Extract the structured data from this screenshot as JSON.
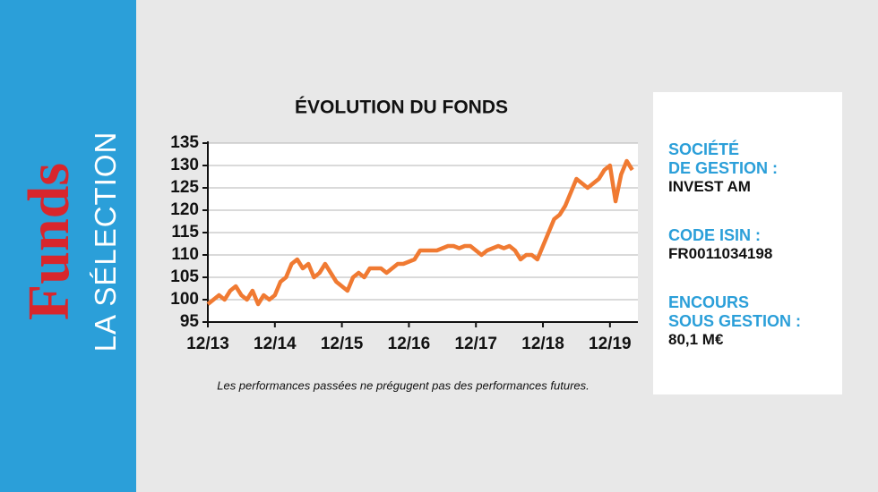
{
  "sidebar": {
    "title": "Funds",
    "subtitle": "LA SÉLECTION"
  },
  "chart_data": {
    "type": "line",
    "title": "ÉVOLUTION DU FONDS",
    "footnote": "Les performances passées ne prégugent pas des performances futures.",
    "x": [
      "2013-12",
      "2014-01",
      "2014-02",
      "2014-03",
      "2014-04",
      "2014-05",
      "2014-06",
      "2014-07",
      "2014-08",
      "2014-09",
      "2014-10",
      "2014-11",
      "2014-12",
      "2015-01",
      "2015-02",
      "2015-03",
      "2015-04",
      "2015-05",
      "2015-06",
      "2015-07",
      "2015-08",
      "2015-09",
      "2015-10",
      "2015-11",
      "2015-12",
      "2016-01",
      "2016-02",
      "2016-03",
      "2016-04",
      "2016-05",
      "2016-06",
      "2016-07",
      "2016-08",
      "2016-09",
      "2016-10",
      "2016-11",
      "2016-12",
      "2017-01",
      "2017-02",
      "2017-03",
      "2017-04",
      "2017-05",
      "2017-06",
      "2017-07",
      "2017-08",
      "2017-09",
      "2017-10",
      "2017-11",
      "2017-12",
      "2018-01",
      "2018-02",
      "2018-03",
      "2018-04",
      "2018-05",
      "2018-06",
      "2018-07",
      "2018-08",
      "2018-09",
      "2018-10",
      "2018-11",
      "2018-12",
      "2019-01",
      "2019-02",
      "2019-03",
      "2019-04",
      "2019-05",
      "2019-06",
      "2019-07",
      "2019-08",
      "2019-09",
      "2019-10",
      "2019-11",
      "2019-12",
      "2020-01",
      "2020-02",
      "2020-03",
      "2020-04"
    ],
    "series": [
      {
        "name": "Fonds",
        "color": "#f07a32",
        "values": [
          99,
          100,
          101,
          100,
          102,
          103,
          101,
          100,
          102,
          99,
          101,
          100,
          101,
          104,
          105,
          108,
          109,
          107,
          108,
          105,
          106,
          108,
          106,
          104,
          103,
          102,
          105,
          106,
          105,
          107,
          107,
          107,
          106,
          107,
          108,
          108,
          108.5,
          109,
          111,
          111,
          111,
          111,
          111.5,
          112,
          112,
          111.5,
          112,
          112,
          111,
          110,
          111,
          111.5,
          112,
          111.5,
          112,
          111,
          109,
          110,
          110,
          109,
          112,
          115,
          118,
          119,
          121,
          124,
          127,
          126,
          125,
          126,
          127,
          129,
          130,
          122,
          128,
          131,
          129
        ]
      }
    ],
    "xlim": [
      "2013-12",
      "2020-05"
    ],
    "xticks": [
      {
        "value": "2013-12",
        "label": "12/13"
      },
      {
        "value": "2014-12",
        "label": "12/14"
      },
      {
        "value": "2015-12",
        "label": "12/15"
      },
      {
        "value": "2016-12",
        "label": "12/16"
      },
      {
        "value": "2017-12",
        "label": "12/17"
      },
      {
        "value": "2018-12",
        "label": "12/18"
      },
      {
        "value": "2019-12",
        "label": "12/19"
      }
    ],
    "ylim": [
      95,
      135
    ],
    "yticks": [
      95,
      100,
      105,
      110,
      115,
      120,
      125,
      130,
      135
    ],
    "grid": true
  },
  "info": [
    {
      "label": [
        "SOCIÉTÉ",
        "DE GESTION :"
      ],
      "value": "INVEST AM"
    },
    {
      "label": [
        "CODE ISIN :"
      ],
      "value": "FR0011034198"
    },
    {
      "label": [
        "ENCOURS",
        "SOUS GESTION :"
      ],
      "value": "80,1  M€"
    }
  ]
}
